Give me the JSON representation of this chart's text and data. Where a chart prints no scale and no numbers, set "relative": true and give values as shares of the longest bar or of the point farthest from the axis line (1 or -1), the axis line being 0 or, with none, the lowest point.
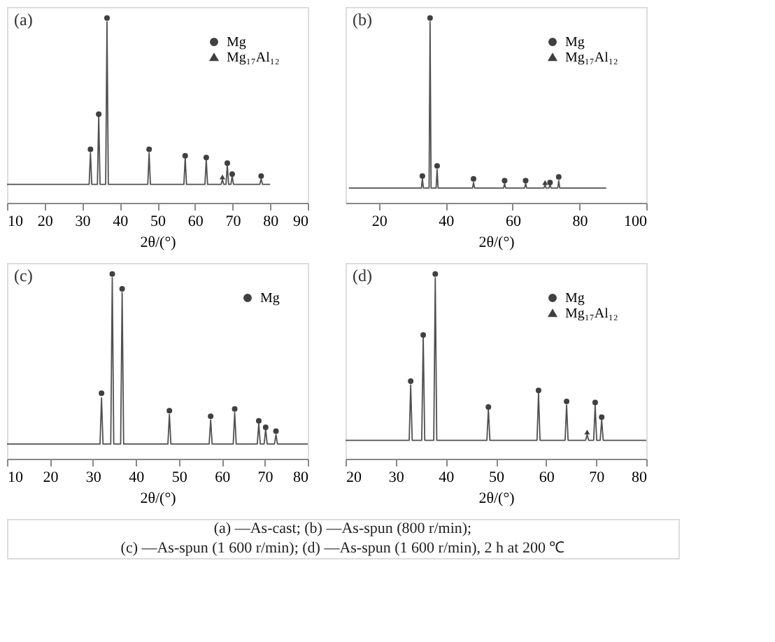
{
  "chart_data": [
    {
      "type": "line",
      "title": "(a)",
      "xlabel": "2θ/(°)",
      "relative": true,
      "xlim": [
        10,
        90
      ],
      "xticks": [
        10,
        20,
        30,
        40,
        50,
        60,
        70,
        80,
        90
      ],
      "legend": "top right",
      "series": [
        {
          "type": "line",
          "color": "#505050",
          "marker": "none",
          "x": [
            10,
            31.85,
            32.2,
            32.55,
            34.05,
            34.4,
            34.75,
            36.25,
            36.6,
            36.95,
            47.45,
            47.8,
            48.15,
            57.05,
            57.4,
            57.75,
            62.65,
            63.0,
            63.35,
            66.95,
            67.3,
            67.65,
            68.25,
            68.6,
            68.95,
            69.55,
            69.9,
            70.25,
            77.25,
            77.6,
            77.95,
            80
          ],
          "values": [
            0.1,
            0.1,
            0.27,
            0.1,
            0.1,
            0.47,
            0.1,
            0.1,
            0.98,
            0.1,
            0.1,
            0.27,
            0.1,
            0.1,
            0.245,
            0.1,
            0.1,
            0.235,
            0.1,
            0.1,
            0.125,
            0.1,
            0.1,
            0.205,
            0.1,
            0.1,
            0.145,
            0.1,
            0.1,
            0.13,
            0.1,
            0.1
          ]
        },
        {
          "type": "scatter",
          "name": "Mg",
          "color": "#404040",
          "marker": "circle",
          "x": [
            32.2,
            34.4,
            36.6,
            47.8,
            57.4,
            63.0,
            68.6,
            69.9,
            77.6
          ],
          "values": [
            0.29,
            0.48,
            1.0,
            0.29,
            0.255,
            0.245,
            0.215,
            0.155,
            0.145
          ]
        },
        {
          "type": "scatter",
          "name": "Mg₁₇Al₁₂",
          "color": "#404040",
          "marker": "triangle",
          "x": [
            67.3
          ],
          "values": [
            0.14
          ]
        }
      ]
    },
    {
      "type": "line",
      "title": "(b)",
      "xlabel": "2θ/(°)",
      "relative": true,
      "xlim": [
        10,
        100
      ],
      "xticks": [
        20,
        40,
        60,
        80,
        100
      ],
      "legend": "top right",
      "series": [
        {
          "type": "line",
          "color": "#505050",
          "marker": "none",
          "x": [
            11,
            32.7,
            33.0,
            33.3,
            35.0,
            35.3,
            35.6,
            37.1,
            37.4,
            37.7,
            48.0,
            48.3,
            48.6,
            57.3,
            57.6,
            57.9,
            63.6,
            63.9,
            64.2,
            69.4,
            69.7,
            70.0,
            70.9,
            71.2,
            71.5,
            73.5,
            73.8,
            74.1,
            88
          ],
          "values": [
            0.08,
            0.08,
            0.13,
            0.08,
            0.08,
            0.98,
            0.08,
            0.08,
            0.18,
            0.08,
            0.08,
            0.11,
            0.08,
            0.08,
            0.105,
            0.08,
            0.08,
            0.105,
            0.08,
            0.08,
            0.1,
            0.08,
            0.08,
            0.1,
            0.08,
            0.08,
            0.12,
            0.08,
            0.08
          ]
        },
        {
          "type": "scatter",
          "name": "Mg",
          "color": "#404040",
          "marker": "circle",
          "x": [
            33.0,
            35.3,
            37.4,
            48.3,
            57.6,
            63.9,
            71.2,
            73.8
          ],
          "values": [
            0.145,
            1.0,
            0.2,
            0.13,
            0.12,
            0.12,
            0.11,
            0.14
          ]
        },
        {
          "type": "scatter",
          "name": "Mg₁₇Al₁₂",
          "color": "#404040",
          "marker": "triangle",
          "x": [
            69.7
          ],
          "values": [
            0.11
          ]
        }
      ]
    },
    {
      "type": "line",
      "title": "(c)",
      "xlabel": "2θ/(°)",
      "relative": true,
      "xlim": [
        10,
        80
      ],
      "xticks": [
        10,
        20,
        30,
        40,
        50,
        60,
        70,
        80
      ],
      "legend": "top right",
      "series": [
        {
          "type": "line",
          "color": "#505050",
          "marker": "none",
          "x": [
            10,
            31.65,
            32.0,
            32.35,
            34.15,
            34.5,
            34.85,
            36.45,
            36.8,
            37.15,
            47.45,
            47.8,
            48.15,
            57.05,
            57.4,
            57.75,
            62.65,
            63.0,
            63.35,
            68.25,
            68.6,
            68.95,
            69.85,
            70.2,
            70.55,
            72.25,
            72.6,
            72.95,
            80
          ],
          "values": [
            0.08,
            0.08,
            0.33,
            0.08,
            0.08,
            0.98,
            0.08,
            0.08,
            0.9,
            0.08,
            0.08,
            0.24,
            0.08,
            0.08,
            0.21,
            0.08,
            0.08,
            0.25,
            0.08,
            0.08,
            0.19,
            0.08,
            0.08,
            0.16,
            0.08,
            0.08,
            0.13,
            0.08,
            0.08
          ]
        },
        {
          "type": "scatter",
          "name": "Mg",
          "color": "#404040",
          "marker": "circle",
          "x": [
            32.0,
            34.5,
            36.8,
            47.8,
            57.4,
            63.0,
            68.6,
            70.2,
            72.6
          ],
          "values": [
            0.355,
            1.0,
            0.92,
            0.26,
            0.23,
            0.27,
            0.205,
            0.17,
            0.15
          ]
        }
      ]
    },
    {
      "type": "line",
      "title": "(d)",
      "xlabel": "2θ/(°)",
      "relative": true,
      "xlim": [
        20,
        80
      ],
      "xticks": [
        20,
        30,
        40,
        50,
        60,
        70,
        80
      ],
      "legend": "top right",
      "series": [
        {
          "type": "line",
          "color": "#505050",
          "marker": "none",
          "x": [
            20,
            32.7,
            33.0,
            33.3,
            35.2,
            35.5,
            35.8,
            37.6,
            37.9,
            38.2,
            48.2,
            48.5,
            48.8,
            58.2,
            58.5,
            58.8,
            63.8,
            64.1,
            64.4,
            67.9,
            68.2,
            68.5,
            69.5,
            69.8,
            70.1,
            70.8,
            71.1,
            71.4,
            80
          ],
          "values": [
            0.1,
            0.1,
            0.4,
            0.1,
            0.1,
            0.66,
            0.1,
            0.1,
            0.98,
            0.1,
            0.1,
            0.27,
            0.1,
            0.1,
            0.355,
            0.1,
            0.1,
            0.29,
            0.1,
            0.1,
            0.13,
            0.1,
            0.1,
            0.29,
            0.1,
            0.1,
            0.21,
            0.1,
            0.1
          ]
        },
        {
          "type": "scatter",
          "name": "Mg",
          "color": "#404040",
          "marker": "circle",
          "x": [
            33.0,
            35.5,
            37.9,
            48.5,
            58.5,
            64.1,
            69.8,
            71.1
          ],
          "values": [
            0.42,
            0.67,
            1.0,
            0.28,
            0.37,
            0.31,
            0.305,
            0.225
          ]
        },
        {
          "type": "scatter",
          "name": "Mg₁₇Al₁₂",
          "color": "#404040",
          "marker": "triangle",
          "x": [
            68.2
          ],
          "values": [
            0.145
          ]
        }
      ]
    },
    {
      "type": "other",
      "annotations": [
        "(a) —As-cast; (b) —As-spun (800 r/min);",
        "(c) —As-spun (1 600 r/min); (d) —As-spun (1 600 r/min), 2 h at 200 ℃"
      ]
    }
  ]
}
